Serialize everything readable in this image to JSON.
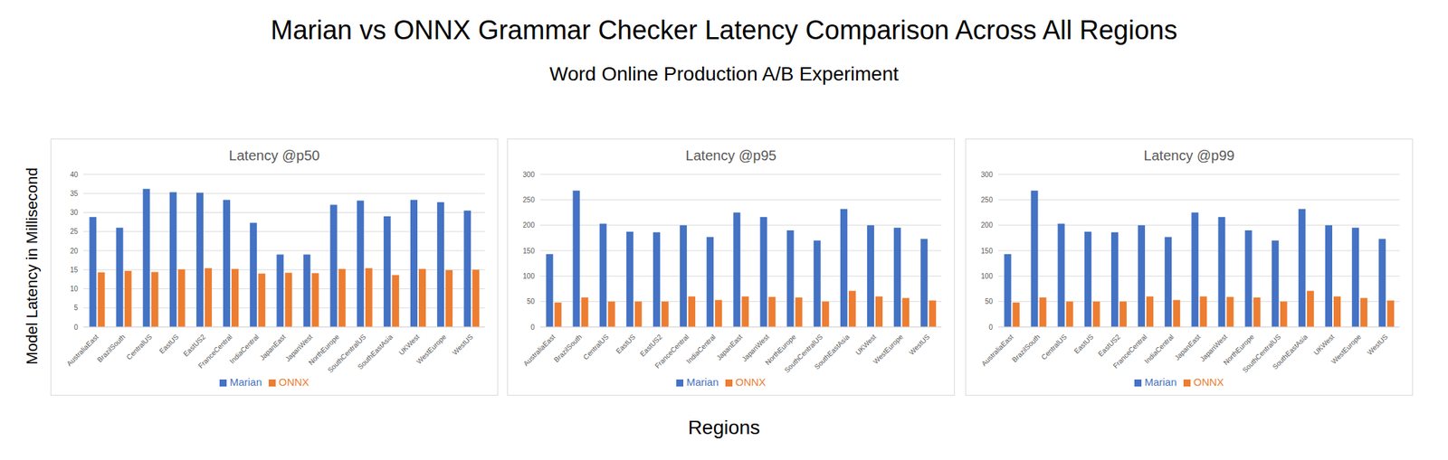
{
  "title": "Marian vs ONNX Grammar Checker Latency Comparison Across All Regions",
  "subtitle": "Word Online Production A/B Experiment",
  "x_label": "Regions",
  "y_label": "Model Latency in Millisecond",
  "chart_data": [
    {
      "type": "bar",
      "title": "Latency @p50",
      "categories": [
        "AustraliaEast",
        "BrazilSouth",
        "CentralUS",
        "EastUS",
        "EastUS2",
        "FranceCentral",
        "IndiaCentral",
        "JapanEast",
        "JapanWest",
        "NorthEurope",
        "SouthCentralUS",
        "SouthEastAsia",
        "UKWest",
        "WestEurope",
        "WestUS"
      ],
      "series": [
        {
          "name": "Marian",
          "color": "#4472c4",
          "values": [
            28.8,
            26,
            36.2,
            35.3,
            35.2,
            33.3,
            27.3,
            19,
            19,
            32,
            33.1,
            29,
            33.3,
            32.7,
            30.5
          ]
        },
        {
          "name": "ONNX",
          "color": "#ed7d31",
          "values": [
            14.3,
            14.7,
            14.4,
            15.1,
            15.4,
            15.2,
            14,
            14.2,
            14.1,
            15.2,
            15.4,
            13.6,
            15.2,
            14.9,
            15
          ]
        }
      ],
      "ylim": [
        0,
        40
      ],
      "yticks": [
        0,
        5,
        10,
        15,
        20,
        25,
        30,
        35,
        40
      ],
      "grid": true,
      "legend": "bottom"
    },
    {
      "type": "bar",
      "title": "Latency @p95",
      "categories": [
        "AustraliaEast",
        "BrazilSouth",
        "CentralUS",
        "EastUS",
        "EastUS2",
        "FranceCentral",
        "IndiaCentral",
        "JapanEast",
        "JapanWest",
        "NorthEurope",
        "SouthCentralUS",
        "SouthEastAsia",
        "UKWest",
        "WestEurope",
        "WestUS"
      ],
      "series": [
        {
          "name": "Marian",
          "color": "#4472c4",
          "values": [
            143,
            268,
            203,
            187,
            186,
            200,
            177,
            225,
            216,
            190,
            170,
            232,
            200,
            195,
            173
          ]
        },
        {
          "name": "ONNX",
          "color": "#ed7d31",
          "values": [
            48,
            58,
            50,
            50,
            50,
            60,
            53,
            60,
            59,
            58,
            50,
            71,
            60,
            57,
            52
          ]
        }
      ],
      "ylim": [
        0,
        300
      ],
      "yticks": [
        0,
        50,
        100,
        150,
        200,
        250,
        300
      ],
      "grid": true,
      "legend": "bottom"
    },
    {
      "type": "bar",
      "title": "Latency @p99",
      "categories": [
        "AustraliaEast",
        "BrazilSouth",
        "CentralUS",
        "EastUS",
        "EastUS2",
        "FranceCentral",
        "IndiaCentral",
        "JapanEast",
        "JapanWest",
        "NorthEurope",
        "SouthCentralUS",
        "SouthEastAsia",
        "UKWest",
        "WestEurope",
        "WestUS"
      ],
      "series": [
        {
          "name": "Marian",
          "color": "#4472c4",
          "values": [
            143,
            268,
            203,
            187,
            186,
            200,
            177,
            225,
            216,
            190,
            170,
            232,
            200,
            195,
            173
          ]
        },
        {
          "name": "ONNX",
          "color": "#ed7d31",
          "values": [
            48,
            58,
            50,
            50,
            50,
            60,
            53,
            60,
            59,
            58,
            50,
            71,
            60,
            57,
            52
          ]
        }
      ],
      "ylim": [
        0,
        300
      ],
      "yticks": [
        0,
        50,
        100,
        150,
        200,
        250,
        300
      ],
      "grid": true,
      "legend": "bottom"
    }
  ]
}
